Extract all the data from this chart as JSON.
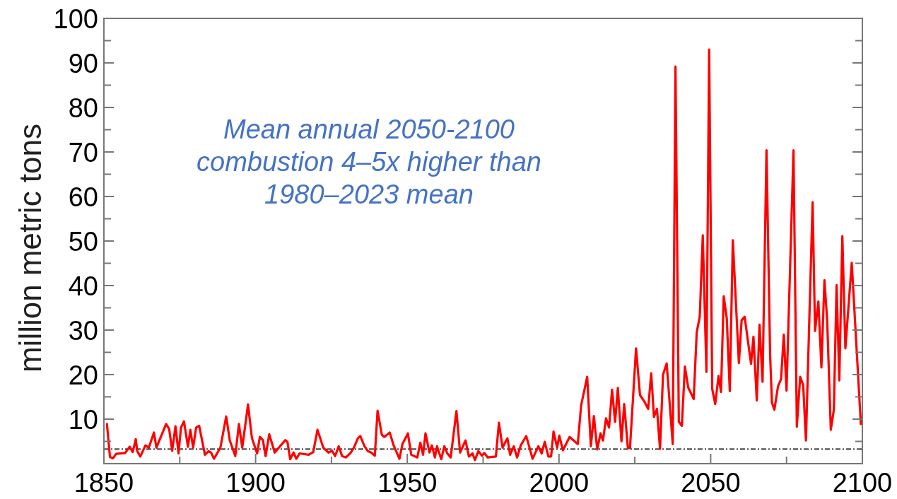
{
  "chart_data": {
    "type": "line",
    "ylabel": "million metric tons",
    "annotations": [
      "Mean annual 2050-2100\ncombustion 4–5x higher than\n1980–2023 mean"
    ],
    "xlim": [
      1850,
      2100
    ],
    "xticks": [
      1850,
      {
        "value": 1875,
        "label": null
      },
      1900,
      {
        "value": 1925,
        "label": null
      },
      1950,
      {
        "value": 1975,
        "label": null
      },
      2000,
      {
        "value": 2025,
        "label": null
      },
      2050,
      {
        "value": 2075,
        "label": null
      },
      2100
    ],
    "ylim": [
      0,
      100
    ],
    "yticks": [
      {
        "value": 0,
        "label": null
      },
      {
        "value": 5,
        "label": null
      },
      10,
      {
        "value": 15,
        "label": null
      },
      20,
      {
        "value": 25,
        "label": null
      },
      30,
      {
        "value": 35,
        "label": null
      },
      40,
      {
        "value": 45,
        "label": null
      },
      50,
      {
        "value": 55,
        "label": null
      },
      60,
      {
        "value": 65,
        "label": null
      },
      70,
      {
        "value": 75,
        "label": null
      },
      80,
      {
        "value": 85,
        "label": null
      },
      90,
      {
        "value": 95,
        "label": null
      },
      100
    ],
    "grid": false,
    "marker": "none",
    "line_style": "solid",
    "ref_lines": [
      {
        "axis": "y",
        "value": 3.3,
        "color": "#000000",
        "line_style": "dashed"
      }
    ],
    "series": [
      {
        "color": "#ff0000",
        "x": [
          1851,
          1852,
          1853,
          1854,
          1857,
          1858.5,
          1859.5,
          1860.5,
          1861,
          1862,
          1863.7,
          1864.8,
          1866.5,
          1867.3,
          1870.5,
          1871.5,
          1872.5,
          1873.6,
          1874.6,
          1875.4,
          1876.4,
          1877.7,
          1878.5,
          1879.4,
          1880.4,
          1881.4,
          1883.3,
          1884.5,
          1885.3,
          1886.3,
          1888.4,
          1890.3,
          1891.5,
          1893.3,
          1894.5,
          1895.6,
          1897.5,
          1898.8,
          1900.5,
          1901.4,
          1902.4,
          1903.3,
          1904.5,
          1906.3,
          1909.8,
          1910.5,
          1911.4,
          1912.5,
          1913.4,
          1914.5,
          1917.5,
          1919,
          1920.4,
          1922.3,
          1924,
          1925.2,
          1926.2,
          1927.4,
          1928.5,
          1929.8,
          1931.4,
          1932.4,
          1933.7,
          1934.5,
          1935.9,
          1937,
          1938.1,
          1939.3,
          1940.2,
          1941.6,
          1942.4,
          1944.2,
          1945.5,
          1947.4,
          1948.4,
          1950.2,
          1951.3,
          1953.3,
          1954.3,
          1955.2,
          1956,
          1957.3,
          1958.1,
          1959.1,
          1959.8,
          1961.2,
          1962.2,
          1963.2,
          1964.3,
          1966.2,
          1967.4,
          1969.2,
          1970.3,
          1971.5,
          1972.3,
          1973.4,
          1974.6,
          1975.4,
          1976.5,
          1979.2,
          1980.2,
          1981.4,
          1983,
          1983.9,
          1985.1,
          1986.2,
          1987.4,
          1989.2,
          1991.3,
          1993.2,
          1994.3,
          1995.3,
          1996.5,
          1997.4,
          1998.2,
          1999.4,
          2000.1,
          2001.3,
          2003.5,
          2006.2,
          2007.3,
          2009.3,
          2010.5,
          2011.5,
          2012.6,
          2013.7,
          2014.5,
          2015.5,
          2016.5,
          2017.5,
          2018.5,
          2019.4,
          2020.6,
          2021.5,
          2022.7,
          2023.4,
          2025.4,
          2026.7,
          2028.1,
          2029.4,
          2030.4,
          2031.3,
          2032.3,
          2033.3,
          2034.3,
          2035.5,
          2037.5,
          2038.4,
          2039.5,
          2040.5,
          2041.5,
          2042.6,
          2044.4,
          2045.4,
          2046.4,
          2047.4,
          2048.6,
          2049.5,
          2050.5,
          2051.5,
          2052.6,
          2053.4,
          2054.3,
          2055.3,
          2056.3,
          2057.3,
          2059.3,
          2060.2,
          2061.2,
          2063.3,
          2064.1,
          2065.2,
          2066.1,
          2067.1,
          2068.4,
          2069.6,
          2070.2,
          2071,
          2072.2,
          2073.2,
          2074.1,
          2075,
          2077.3,
          2078.4,
          2079.5,
          2080.5,
          2081.4,
          2083.6,
          2084.4,
          2085.5,
          2086.5,
          2087.5,
          2088.4,
          2089.6,
          2090.6,
          2091.5,
          2092.4,
          2093.4,
          2094.4,
          2096.5,
          2099.5
        ],
        "values": [
          8.9,
          1.5,
          1.2,
          2.2,
          2.4,
          3.8,
          2.6,
          5.5,
          2.8,
          1.6,
          4.1,
          3.6,
          7.0,
          3.6,
          8.9,
          7.8,
          2.9,
          8.4,
          2.3,
          8.1,
          9.5,
          3.8,
          7.6,
          3.6,
          8.1,
          8.5,
          2.0,
          2.8,
          2.5,
          1.1,
          3.6,
          10.6,
          5.2,
          1.7,
          8.9,
          3.6,
          13.3,
          5.7,
          2.3,
          6.0,
          5.3,
          1.7,
          6.6,
          2.5,
          5.3,
          4.9,
          1.0,
          2.5,
          1.1,
          2.3,
          2.0,
          2.6,
          7.6,
          3.6,
          2.5,
          2.9,
          1.7,
          3.9,
          1.7,
          1.4,
          2.5,
          3.6,
          5.7,
          6.2,
          3.9,
          2.8,
          2.5,
          1.8,
          11.9,
          6.5,
          6.0,
          7.0,
          4.1,
          1.1,
          4.4,
          6.8,
          2.0,
          1.4,
          4.7,
          2.0,
          6.8,
          2.5,
          4.1,
          1.4,
          3.9,
          1.0,
          3.9,
          2.3,
          1.4,
          11.8,
          2.5,
          5.2,
          1.6,
          2.3,
          0.8,
          2.8,
          1.8,
          2.4,
          1.4,
          1.6,
          9.2,
          3.6,
          5.7,
          2.0,
          3.9,
          1.4,
          4.1,
          6.2,
          1.1,
          3.9,
          2.3,
          4.9,
          1.6,
          1.6,
          7.2,
          3.6,
          6.3,
          3.0,
          6.0,
          4.4,
          13.1,
          19.5,
          3.9,
          10.7,
          3.2,
          6.8,
          5.2,
          10.2,
          8.1,
          16.6,
          9.4,
          17.0,
          5.0,
          13.4,
          3.6,
          3.5,
          25.9,
          15.4,
          14.0,
          12.3,
          20.3,
          10.5,
          12.3,
          3.3,
          20.0,
          22.5,
          4.4,
          89.2,
          9.4,
          8.5,
          21.8,
          17.1,
          14.5,
          29.5,
          33.0,
          51.3,
          20.6,
          93.0,
          16.8,
          13.4,
          19.7,
          16.1,
          37.6,
          32.7,
          16.3,
          50.2,
          22.6,
          32.2,
          33.0,
          22.4,
          28.5,
          14.2,
          31.2,
          18.4,
          70.4,
          24.2,
          13.7,
          12.1,
          17.4,
          19.0,
          29.0,
          16.4,
          70.4,
          8.3,
          19.5,
          17.6,
          5.2,
          58.7,
          29.8,
          36.4,
          21.6,
          41.2,
          32.2,
          7.6,
          12.1,
          40.1,
          18.7,
          51.1,
          25.9,
          45.1,
          8.9
        ]
      }
    ]
  }
}
